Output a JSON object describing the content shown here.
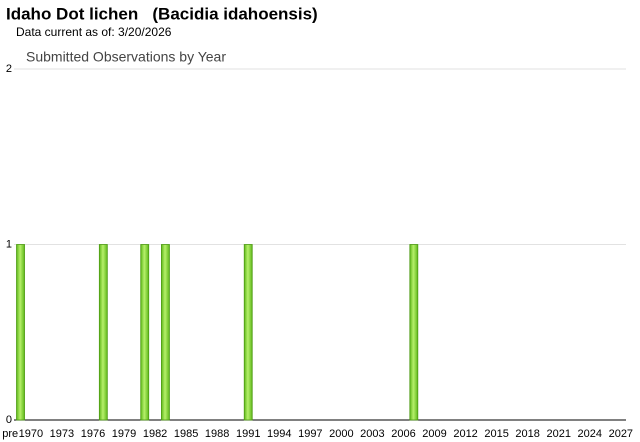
{
  "chart_data": {
    "type": "bar",
    "title": "Idaho Dot lichen   (Bacidia idahoensis)",
    "subtitle": "Data current as of: 3/20/2026",
    "chart_title": "Submitted Observations by Year",
    "categories": [
      "pre",
      null,
      "1970",
      null,
      null,
      "1973",
      null,
      null,
      "1976",
      null,
      null,
      "1979",
      null,
      null,
      "1982",
      null,
      null,
      "1985",
      null,
      null,
      "1988",
      null,
      null,
      "1991",
      null,
      null,
      "1994",
      null,
      null,
      "1997",
      null,
      null,
      "2000",
      null,
      null,
      "2003",
      null,
      null,
      "2006",
      null,
      null,
      "2009",
      null,
      null,
      "2012",
      null,
      null,
      "2015",
      null,
      null,
      "2018",
      null,
      null,
      "2021",
      null,
      null,
      "2024",
      null,
      null,
      "2027"
    ],
    "values": [
      0,
      1,
      0,
      0,
      0,
      0,
      0,
      0,
      0,
      1,
      0,
      0,
      0,
      1,
      0,
      1,
      0,
      0,
      0,
      0,
      0,
      0,
      0,
      1,
      0,
      0,
      0,
      0,
      0,
      0,
      0,
      0,
      0,
      0,
      0,
      0,
      0,
      0,
      0,
      1,
      0,
      0,
      0,
      0,
      0,
      0,
      0,
      0,
      0,
      0,
      0,
      0,
      0,
      0,
      0,
      0,
      0,
      0,
      0,
      0
    ],
    "color": "#7dd12e",
    "ylim": [
      0,
      2
    ],
    "yticks": [
      0,
      1,
      2
    ],
    "grid": true
  }
}
